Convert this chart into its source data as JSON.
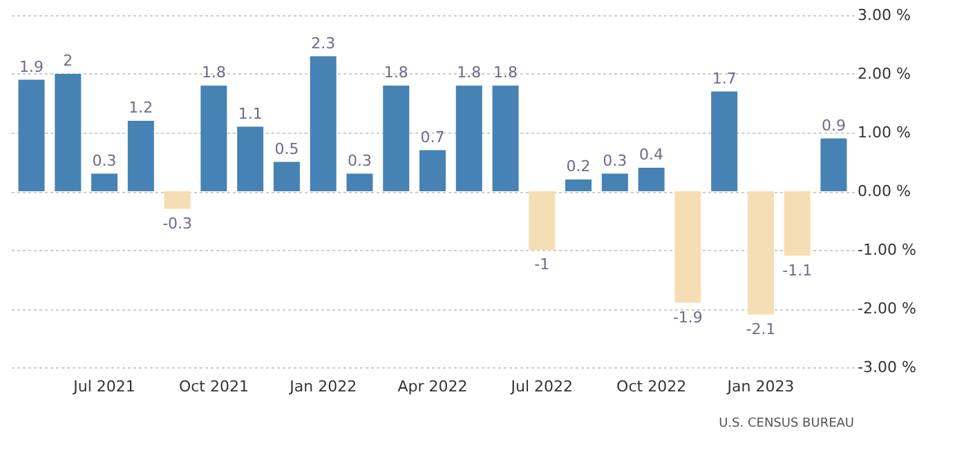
{
  "chart_data": {
    "type": "bar",
    "categories": [
      null,
      null,
      "Jul 2021",
      null,
      null,
      "Oct 2021",
      null,
      null,
      "Jan 2022",
      null,
      null,
      "Apr 2022",
      null,
      null,
      "Jul 2022",
      null,
      null,
      "Oct 2022",
      null,
      null,
      "Jan 2023",
      null,
      null
    ],
    "values": [
      1.9,
      2,
      0.3,
      1.2,
      -0.3,
      1.8,
      1.1,
      0.5,
      2.3,
      0.3,
      1.8,
      0.7,
      1.8,
      1.8,
      -1,
      0.2,
      0.3,
      0.4,
      -1.9,
      1.7,
      -2.1,
      -1.1,
      0.9
    ],
    "colors": [
      "#4682b4",
      "#4682b4",
      "#4682b4",
      "#4682b4",
      "#f5deb3",
      "#4682b4",
      "#4682b4",
      "#4682b4",
      "#4682b4",
      "#4682b4",
      "#4682b4",
      "#4682b4",
      "#4682b4",
      "#4682b4",
      "#f5deb3",
      "#4682b4",
      "#4682b4",
      "#4682b4",
      "#f5deb3",
      "#4682b4",
      "#f5deb3",
      "#f5deb3",
      "#4682b4"
    ],
    "data_labels": true,
    "ylim": [
      -3,
      3
    ],
    "yticks": [
      {
        "value": 3,
        "label": "3.00 %"
      },
      {
        "value": 2,
        "label": "2.00 %"
      },
      {
        "value": 1,
        "label": "1.00 %"
      },
      {
        "value": 0,
        "label": "0.00 %"
      },
      {
        "value": -1,
        "label": "-1.00 %"
      },
      {
        "value": -2,
        "label": "-2.00 %"
      },
      {
        "value": -3,
        "label": "-3.00 %"
      }
    ],
    "grid": "y",
    "annotations": [
      "U.S. CENSUS BUREAU"
    ]
  }
}
